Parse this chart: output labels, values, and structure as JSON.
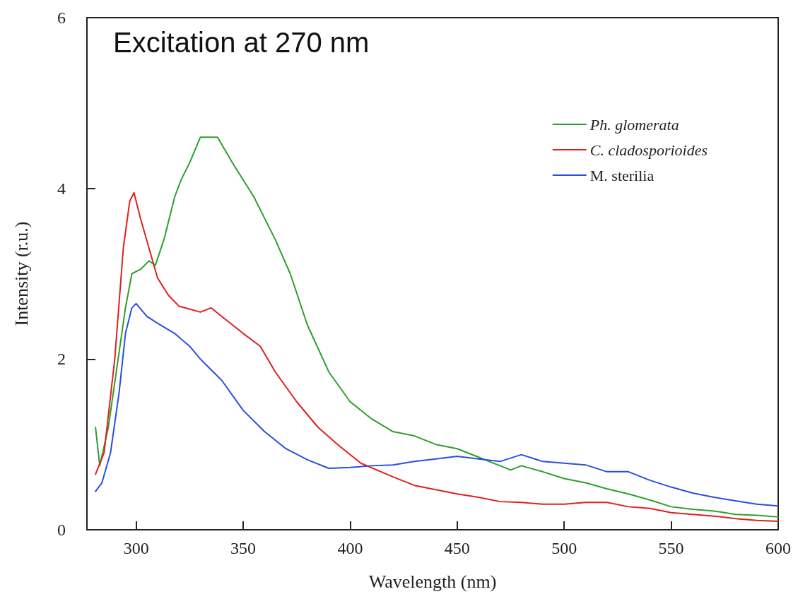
{
  "chart_data": {
    "type": "line",
    "xlabel": "Wavelength (nm)",
    "ylabel": "Intensity (r.u.)",
    "annotations": [
      "Excitation at 270 nm"
    ],
    "xlim": [
      277,
      600
    ],
    "xticks": [
      300,
      350,
      400,
      450,
      500,
      550,
      600
    ],
    "ylim": [
      0,
      6
    ],
    "yticks": [
      0,
      2,
      4,
      6
    ],
    "grid": false,
    "legend": "top right",
    "marker": "none",
    "line_style": "solid",
    "series": [
      {
        "name": "Ph. glomerata",
        "color": "#2ca02c",
        "x": [
          281,
          283,
          287,
          291,
          295,
          298,
          302,
          306,
          309,
          313,
          318,
          321,
          325,
          330,
          335,
          338,
          345,
          355,
          365,
          372,
          380,
          390,
          400,
          410,
          420,
          430,
          440,
          450,
          460,
          470,
          475,
          480,
          490,
          500,
          510,
          520,
          530,
          540,
          550,
          560,
          570,
          580,
          590,
          600
        ],
        "values": [
          1.2,
          0.75,
          1.2,
          1.9,
          2.6,
          3.0,
          3.05,
          3.15,
          3.1,
          3.4,
          3.9,
          4.1,
          4.3,
          4.6,
          4.6,
          4.6,
          4.3,
          3.9,
          3.4,
          3.0,
          2.4,
          1.85,
          1.5,
          1.3,
          1.15,
          1.1,
          1.0,
          0.95,
          0.85,
          0.75,
          0.7,
          0.75,
          0.68,
          0.6,
          0.55,
          0.48,
          0.42,
          0.35,
          0.27,
          0.24,
          0.22,
          0.18,
          0.17,
          0.15
        ]
      },
      {
        "name": "C. cladosporioides",
        "color": "#e02020",
        "x": [
          281,
          285,
          290,
          294,
          297,
          299,
          302,
          306,
          310,
          315,
          320,
          330,
          335,
          340,
          350,
          358,
          365,
          375,
          385,
          395,
          405,
          420,
          430,
          440,
          450,
          460,
          470,
          480,
          490,
          500,
          510,
          520,
          530,
          540,
          550,
          560,
          570,
          580,
          590,
          600
        ],
        "values": [
          0.65,
          0.9,
          2.0,
          3.3,
          3.85,
          3.95,
          3.65,
          3.3,
          2.95,
          2.75,
          2.62,
          2.55,
          2.6,
          2.5,
          2.3,
          2.15,
          1.85,
          1.5,
          1.2,
          0.98,
          0.78,
          0.62,
          0.52,
          0.47,
          0.42,
          0.38,
          0.33,
          0.32,
          0.3,
          0.3,
          0.32,
          0.32,
          0.27,
          0.25,
          0.2,
          0.18,
          0.16,
          0.13,
          0.11,
          0.1
        ]
      },
      {
        "name": "M. sterilia",
        "color": "#2b4ee0",
        "x": [
          281,
          284,
          288,
          292,
          295,
          298,
          300,
          305,
          310,
          318,
          325,
          330,
          340,
          350,
          360,
          370,
          380,
          390,
          400,
          410,
          420,
          430,
          440,
          450,
          460,
          470,
          480,
          490,
          500,
          510,
          520,
          530,
          540,
          550,
          560,
          570,
          580,
          590,
          600
        ],
        "values": [
          0.45,
          0.55,
          0.9,
          1.6,
          2.3,
          2.6,
          2.65,
          2.5,
          2.42,
          2.3,
          2.15,
          2.0,
          1.75,
          1.4,
          1.15,
          0.95,
          0.82,
          0.72,
          0.73,
          0.75,
          0.76,
          0.8,
          0.83,
          0.86,
          0.83,
          0.8,
          0.88,
          0.8,
          0.78,
          0.76,
          0.68,
          0.68,
          0.58,
          0.5,
          0.43,
          0.38,
          0.34,
          0.3,
          0.28
        ]
      }
    ]
  }
}
